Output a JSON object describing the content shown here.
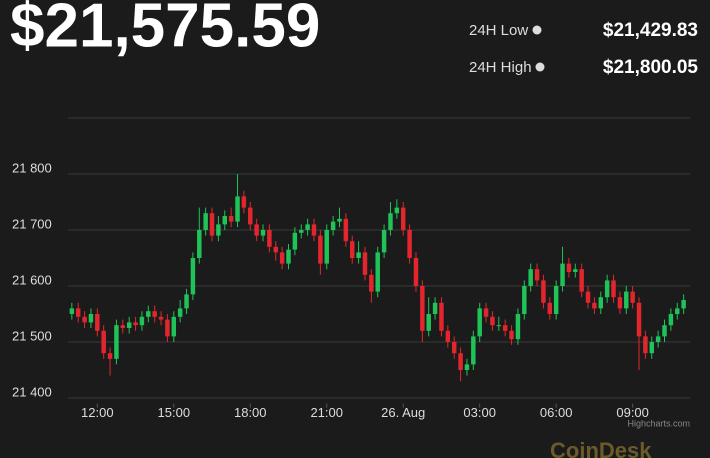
{
  "header": {
    "price": "$21,575.59",
    "low_label": "24H Low",
    "low_value": "$21,429.83",
    "high_label": "24H High",
    "high_value": "$21,800.05"
  },
  "credit": "Highcharts.com",
  "brand": "CoinDesk",
  "chart_data": {
    "type": "candlestick",
    "up_color": "#1fc358",
    "down_color": "#e3262e",
    "grid": true,
    "x": [
      11,
      11.25,
      11.5,
      11.75,
      12,
      12.25,
      12.5,
      12.75,
      13,
      13.25,
      13.5,
      13.75,
      14,
      14.25,
      14.5,
      14.75,
      15,
      15.25,
      15.5,
      15.75,
      16,
      16.25,
      16.5,
      16.75,
      17,
      17.25,
      17.5,
      17.75,
      18,
      18.25,
      18.5,
      18.75,
      19,
      19.25,
      19.5,
      19.75,
      20,
      20.25,
      20.5,
      20.75,
      21,
      21.25,
      21.5,
      21.75,
      22,
      22.25,
      22.5,
      22.75,
      23,
      23.25,
      23.5,
      23.75,
      24,
      24.25,
      24.5,
      24.75,
      25,
      25.25,
      25.5,
      25.75,
      26,
      26.25,
      26.5,
      26.75,
      27,
      27.25,
      27.5,
      27.75,
      28,
      28.25,
      28.5,
      28.75,
      29,
      29.25,
      29.5,
      29.75,
      30,
      30.25,
      30.5,
      30.75,
      31,
      31.25,
      31.5,
      31.75,
      32,
      32.25,
      32.5,
      32.75,
      33,
      33.25,
      33.5,
      33.75,
      34,
      34.25,
      34.5,
      34.75,
      35
    ],
    "open": [
      21550,
      21560,
      21545,
      21535,
      21550,
      21520,
      21480,
      21470,
      21530,
      21525,
      21535,
      21530,
      21545,
      21555,
      21545,
      21540,
      21510,
      21545,
      21560,
      21585,
      21650,
      21700,
      21730,
      21690,
      21710,
      21725,
      21715,
      21760,
      21740,
      21710,
      21690,
      21700,
      21670,
      21660,
      21640,
      21665,
      21695,
      21700,
      21710,
      21690,
      21640,
      21700,
      21715,
      21720,
      21680,
      21650,
      21660,
      21620,
      21590,
      21660,
      21700,
      21730,
      21740,
      21700,
      21650,
      21600,
      21520,
      21550,
      21570,
      21520,
      21500,
      21480,
      21450,
      21460,
      21510,
      21560,
      21545,
      21530,
      21530,
      21520,
      21505,
      21550,
      21600,
      21630,
      21610,
      21570,
      21550,
      21600,
      21640,
      21625,
      21630,
      21590,
      21570,
      21560,
      21580,
      21610,
      21580,
      21560,
      21590,
      21570,
      21510,
      21480,
      21500,
      21510,
      21530,
      21550,
      21560
    ],
    "high": [
      21570,
      21570,
      21555,
      21560,
      21560,
      21530,
      21490,
      21540,
      21540,
      21545,
      21545,
      21555,
      21565,
      21565,
      21555,
      21550,
      21555,
      21575,
      21595,
      21660,
      21740,
      21740,
      21740,
      21725,
      21735,
      21740,
      21800,
      21770,
      21750,
      21720,
      21710,
      21710,
      21680,
      21670,
      21675,
      21705,
      21710,
      21720,
      21720,
      21700,
      21710,
      21725,
      21740,
      21730,
      21690,
      21680,
      21670,
      21630,
      21670,
      21710,
      21750,
      21755,
      21750,
      21710,
      21660,
      21610,
      21580,
      21580,
      21580,
      21530,
      21510,
      21490,
      21470,
      21520,
      21570,
      21570,
      21555,
      21545,
      21540,
      21530,
      21560,
      21610,
      21640,
      21640,
      21620,
      21580,
      21610,
      21670,
      21650,
      21640,
      21640,
      21600,
      21580,
      21590,
      21620,
      21620,
      21590,
      21600,
      21600,
      21580,
      21520,
      21510,
      21520,
      21540,
      21560,
      21570,
      21585
    ],
    "low": [
      21540,
      21535,
      21525,
      21525,
      21510,
      21470,
      21440,
      21460,
      21515,
      21515,
      21520,
      21520,
      21535,
      21535,
      21530,
      21500,
      21500,
      21535,
      21550,
      21575,
      21640,
      21690,
      21680,
      21680,
      21700,
      21705,
      21705,
      21730,
      21700,
      21680,
      21680,
      21660,
      21645,
      21630,
      21630,
      21655,
      21685,
      21690,
      21680,
      21620,
      21630,
      21690,
      21705,
      21670,
      21640,
      21640,
      21610,
      21570,
      21580,
      21650,
      21690,
      21720,
      21690,
      21640,
      21590,
      21500,
      21510,
      21540,
      21510,
      21490,
      21470,
      21430,
      21440,
      21450,
      21500,
      21535,
      21520,
      21520,
      21510,
      21495,
      21495,
      21540,
      21590,
      21600,
      21560,
      21540,
      21540,
      21590,
      21615,
      21615,
      21580,
      21560,
      21550,
      21550,
      21570,
      21570,
      21550,
      21550,
      21560,
      21450,
      21470,
      21470,
      21490,
      21500,
      21520,
      21540,
      21550
    ],
    "close": [
      21560,
      21545,
      21535,
      21550,
      21520,
      21480,
      21470,
      21530,
      21525,
      21535,
      21530,
      21545,
      21555,
      21545,
      21540,
      21510,
      21545,
      21560,
      21585,
      21650,
      21700,
      21730,
      21690,
      21710,
      21725,
      21715,
      21760,
      21740,
      21710,
      21690,
      21700,
      21670,
      21660,
      21640,
      21665,
      21695,
      21700,
      21710,
      21690,
      21640,
      21700,
      21715,
      21720,
      21680,
      21650,
      21660,
      21620,
      21590,
      21660,
      21700,
      21730,
      21740,
      21700,
      21650,
      21600,
      21520,
      21550,
      21570,
      21520,
      21500,
      21480,
      21450,
      21460,
      21510,
      21560,
      21545,
      21530,
      21530,
      21520,
      21505,
      21550,
      21600,
      21630,
      21610,
      21570,
      21550,
      21600,
      21640,
      21625,
      21630,
      21590,
      21570,
      21560,
      21580,
      21610,
      21580,
      21560,
      21590,
      21570,
      21510,
      21480,
      21500,
      21510,
      21530,
      21550,
      21560,
      21575
    ],
    "xlim": [
      10.85,
      35.25
    ],
    "xticks": [
      {
        "value": 12,
        "label": "12:00"
      },
      {
        "value": 15,
        "label": "15:00"
      },
      {
        "value": 18,
        "label": "18:00"
      },
      {
        "value": 21,
        "label": "21:00"
      },
      {
        "value": 24,
        "label": "26. Aug"
      },
      {
        "value": 27,
        "label": "03:00"
      },
      {
        "value": 30,
        "label": "06:00"
      },
      {
        "value": 33,
        "label": "09:00"
      }
    ],
    "ylim": [
      21390,
      21900
    ],
    "yticks": [
      {
        "value": 21400,
        "label": "21 400"
      },
      {
        "value": 21500,
        "label": "21 500"
      },
      {
        "value": 21600,
        "label": "21 600"
      },
      {
        "value": 21700,
        "label": "21 700"
      },
      {
        "value": 21800,
        "label": "21 800"
      }
    ]
  }
}
